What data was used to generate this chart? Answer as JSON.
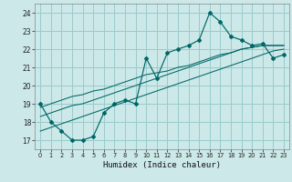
{
  "title": "",
  "xlabel": "Humidex (Indice chaleur)",
  "bg_color": "#cce8e8",
  "grid_color": "#99cccc",
  "line_color": "#006666",
  "xlim": [
    -0.5,
    23.5
  ],
  "ylim": [
    16.5,
    24.5
  ],
  "yticks": [
    17,
    18,
    19,
    20,
    21,
    22,
    23,
    24
  ],
  "xticks": [
    0,
    1,
    2,
    3,
    4,
    5,
    6,
    7,
    8,
    9,
    10,
    11,
    12,
    13,
    14,
    15,
    16,
    17,
    18,
    19,
    20,
    21,
    22,
    23
  ],
  "x": [
    0,
    1,
    2,
    3,
    4,
    5,
    6,
    7,
    8,
    9,
    10,
    11,
    12,
    13,
    14,
    15,
    16,
    17,
    18,
    19,
    20,
    21,
    22,
    23
  ],
  "y_main": [
    19.0,
    18.0,
    17.5,
    17.0,
    17.0,
    17.2,
    18.5,
    19.0,
    19.2,
    19.0,
    21.5,
    20.4,
    21.8,
    22.0,
    22.2,
    22.5,
    24.0,
    23.5,
    22.7,
    22.5,
    22.2,
    22.3,
    21.5,
    21.7
  ],
  "y_trend1": [
    17.5,
    17.7,
    17.9,
    18.1,
    18.3,
    18.5,
    18.7,
    18.9,
    19.1,
    19.3,
    19.5,
    19.7,
    19.9,
    20.1,
    20.3,
    20.5,
    20.7,
    20.9,
    21.1,
    21.3,
    21.5,
    21.7,
    21.9,
    22.0
  ],
  "y_trend2": [
    18.3,
    18.5,
    18.7,
    18.9,
    19.0,
    19.2,
    19.4,
    19.6,
    19.8,
    20.0,
    20.2,
    20.4,
    20.6,
    20.8,
    21.0,
    21.2,
    21.4,
    21.6,
    21.8,
    22.0,
    22.1,
    22.2,
    22.2,
    22.2
  ],
  "y_trend3": [
    18.8,
    19.0,
    19.2,
    19.4,
    19.5,
    19.7,
    19.8,
    20.0,
    20.2,
    20.4,
    20.6,
    20.7,
    20.8,
    21.0,
    21.1,
    21.3,
    21.5,
    21.7,
    21.8,
    22.0,
    22.1,
    22.2,
    22.2,
    22.2
  ]
}
